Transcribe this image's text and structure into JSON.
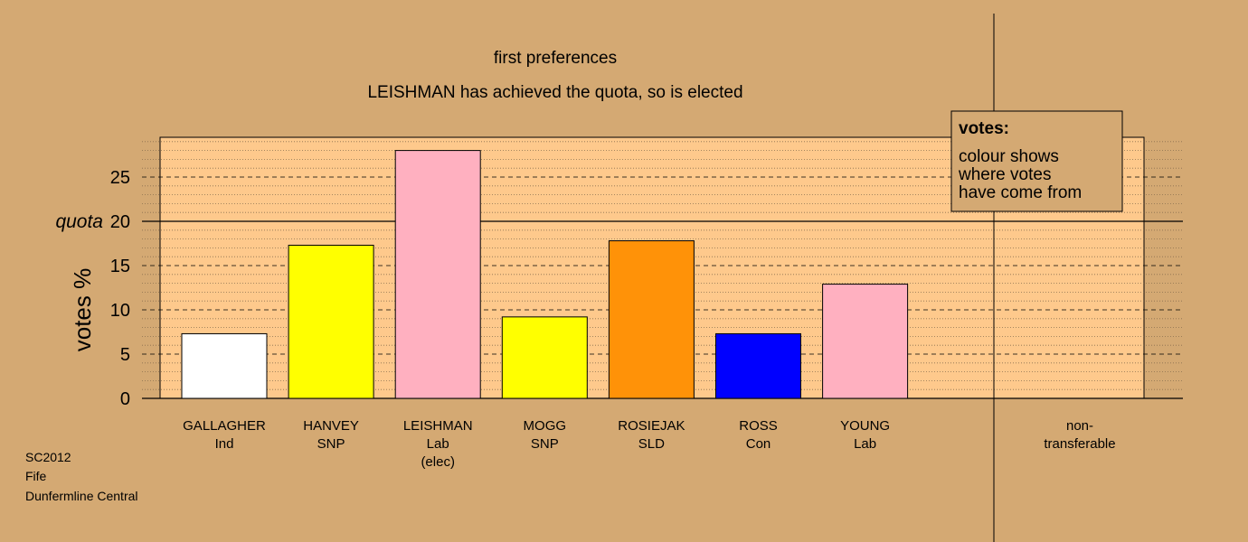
{
  "title_line1": "first preferences",
  "title_line2": "LEISHMAN has achieved the quota, so is elected",
  "legend": {
    "heading": "votes:",
    "lines": [
      "colour shows",
      "where votes",
      "have come from"
    ]
  },
  "footer": [
    "SC2012",
    "Fife",
    "Dunfermline Central"
  ],
  "quota_label": "quota",
  "colors": {
    "background": "#d4a973",
    "plot_area": "#fec98c",
    "border": "#000000"
  },
  "chart_data": {
    "type": "bar",
    "ylabel": "votes %",
    "ylim": [
      0,
      29.5
    ],
    "yticks": [
      0,
      5,
      10,
      15,
      20,
      25
    ],
    "quota": 20,
    "major_grid": [
      5,
      10,
      15,
      25
    ],
    "minor_grid_step": 1,
    "categories": [
      {
        "name": "GALLAGHER",
        "party": "Ind",
        "note": "",
        "value": 7.3,
        "color": "#ffffff"
      },
      {
        "name": "HANVEY",
        "party": "SNP",
        "note": "",
        "value": 17.3,
        "color": "#ffff00"
      },
      {
        "name": "LEISHMAN",
        "party": "Lab",
        "note": "(elec)",
        "value": 28.0,
        "color": "#ffb0c0"
      },
      {
        "name": "MOGG",
        "party": "SNP",
        "note": "",
        "value": 9.2,
        "color": "#ffff00"
      },
      {
        "name": "ROSIEJAK",
        "party": "SLD",
        "note": "",
        "value": 17.8,
        "color": "#ff9208"
      },
      {
        "name": "ROSS",
        "party": "Con",
        "note": "",
        "value": 7.3,
        "color": "#0000ff"
      },
      {
        "name": "YOUNG",
        "party": "Lab",
        "note": "",
        "value": 12.9,
        "color": "#ffb0c0"
      }
    ],
    "nontransferable": {
      "label_line1": "non-",
      "label_line2": "transferable",
      "value": 0
    }
  }
}
